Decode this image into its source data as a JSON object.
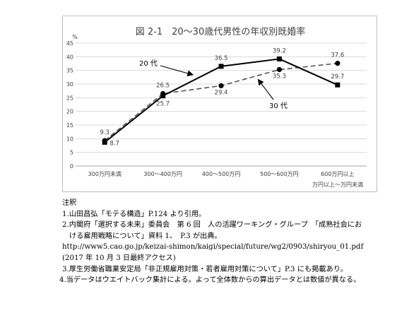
{
  "chart_data": {
    "type": "line",
    "title": "図 2-1　20～30歳代男性の年収別既婚率",
    "yunit": "%",
    "ylim": [
      0,
      45
    ],
    "yticks": [
      0,
      5,
      10,
      15,
      20,
      25,
      30,
      35,
      40,
      45
    ],
    "ytick_labels": [
      "0",
      "5",
      "10",
      "15",
      "20",
      "25",
      "30",
      "35",
      "40",
      "45"
    ],
    "categories": [
      "300万円未満",
      "300～400万円",
      "400～500万円",
      "500～600万円",
      "600万円以上"
    ],
    "x_footnote": "万円以上～万円未満",
    "grid": true,
    "legend": "callout",
    "series": [
      {
        "name": "20 代",
        "values": [
          8.7,
          25.7,
          36.5,
          39.2,
          29.7
        ],
        "data_labels": [
          "8.7",
          "25.7",
          "36.5",
          "39.2",
          "29.7"
        ],
        "color": "#000000",
        "line": "solid",
        "marker": "square"
      },
      {
        "name": "30 代",
        "values": [
          9.3,
          26.5,
          29.4,
          35.3,
          37.6
        ],
        "data_labels": [
          "9.3",
          "26.5",
          "29.4",
          "35.3",
          "37.6"
        ],
        "color": "#555555",
        "line": "dashed",
        "marker": "circle"
      }
    ]
  },
  "notes": {
    "heading": "注釈",
    "items": [
      "1.山田昌弘「モテる構造」P.124 より引用。",
      "2.内閣府「選択する未来」委員会　第 6 回　人の活躍ワーキング・グループ　「成熟社会にお",
      "ける雇用戦略について」資料 1、　P.3 が出典。",
      "http://www5.cao.go.jp/keizai-shimon/kaigi/special/future/wg2/0903/shiryou_01.pdf",
      "(2017 年 10 月 3 日最終アクセス)",
      "3.厚生労働省職業安定局「非正規雇用対策・若者雇用対策について」P.3 にも掲載あり。",
      "4.当データはウエイトバック集計による。よって全体数からの算出データとは数値が異なる。"
    ]
  }
}
